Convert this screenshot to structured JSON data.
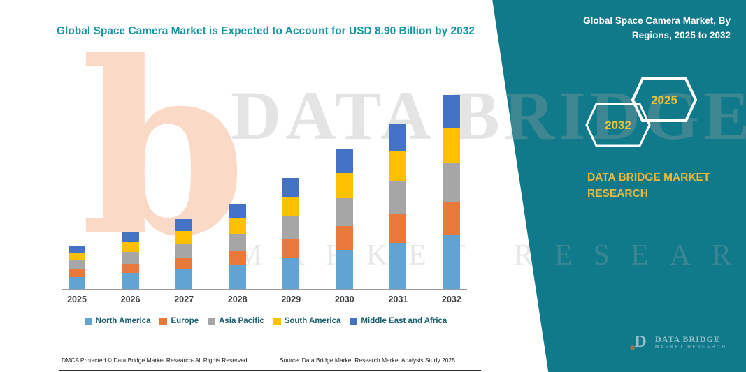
{
  "title": "Global Space Camera Market is Expected to Account for USD 8.90 Billion by 2032",
  "colors": {
    "panel_teal": "#10798A",
    "title_teal": "#1794A6",
    "accent_yellow": "#E9B93C"
  },
  "side_panel": {
    "heading": "Global Space Camera Market, By Regions, 2025 to 2032",
    "hexagon_left": "2032",
    "hexagon_right": "2025",
    "brand_line1": "DATA BRIDGE MARKET",
    "brand_line2": "RESEARCH",
    "logo": {
      "mark": "D",
      "name": "DATA BRIDGE",
      "tagline": "MARKET RESEARCH"
    }
  },
  "watermark": {
    "letter": "b",
    "line1": "DATA BRIDGE",
    "line2": "MARKET RESEARCH"
  },
  "chart_data": {
    "type": "bar",
    "stacked": true,
    "title": "Global Space Camera Market is Expected to Account for USD 8.90 Billion by 2032",
    "unit": "USD Billion",
    "categories": [
      "2025",
      "2026",
      "2027",
      "2028",
      "2029",
      "2030",
      "2031",
      "2032"
    ],
    "series": [
      {
        "name": "North America",
        "color": "#61A3D2",
        "values": [
          0.56,
          0.73,
          0.9,
          1.09,
          1.43,
          1.79,
          2.13,
          2.49
        ]
      },
      {
        "name": "Europe",
        "color": "#E8793A",
        "values": [
          0.34,
          0.44,
          0.54,
          0.66,
          0.87,
          1.09,
          1.29,
          1.51
        ]
      },
      {
        "name": "Asia Pacific",
        "color": "#A6A6A6",
        "values": [
          0.4,
          0.52,
          0.64,
          0.78,
          1.02,
          1.28,
          1.52,
          1.78
        ]
      },
      {
        "name": "South America",
        "color": "#FFC000",
        "values": [
          0.36,
          0.47,
          0.58,
          0.7,
          0.92,
          1.15,
          1.37,
          1.6
        ]
      },
      {
        "name": "Middle East and Africa",
        "color": "#4472C4",
        "values": [
          0.34,
          0.44,
          0.54,
          0.66,
          0.86,
          1.09,
          1.29,
          1.52
        ]
      }
    ],
    "totals": [
      2.0,
      2.6,
      3.2,
      3.9,
      5.1,
      6.4,
      7.6,
      8.9
    ],
    "ylim": [
      0,
      9
    ],
    "grid": false,
    "legend_position": "bottom"
  },
  "footer": {
    "left": "DMCA Protected © Data Bridge Market Research-  All Rights Reserved.",
    "source": "Source: Data Bridge Market Research  Market Analysis Study 2025"
  }
}
